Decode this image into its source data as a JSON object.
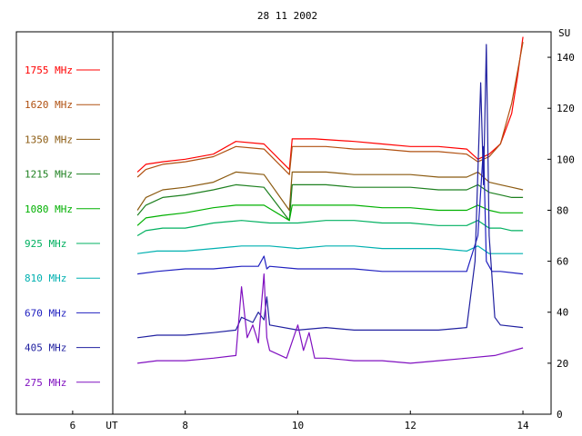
{
  "chart_data": {
    "type": "line",
    "title": "28 11 2002",
    "xlabel": "UT",
    "ylabel": "SU",
    "xlim": [
      5.0,
      14.5
    ],
    "ylim": [
      0,
      150
    ],
    "x_ticks": [
      6,
      8,
      10,
      12,
      14
    ],
    "y_ticks": [
      0,
      20,
      40,
      60,
      80,
      100,
      120,
      140
    ],
    "grid": false,
    "legend_position": "left",
    "series": [
      {
        "name": "1755 MHz",
        "color": "#ff0000",
        "x": [
          7.15,
          7.3,
          7.6,
          8.0,
          8.5,
          8.9,
          9.4,
          9.85,
          9.9,
          10.3,
          11.0,
          11.5,
          12.0,
          12.5,
          13.0,
          13.2,
          13.4,
          13.6,
          13.8,
          13.9,
          14.0
        ],
        "y": [
          95,
          98,
          99,
          100,
          102,
          107,
          106,
          96,
          108,
          108,
          107,
          106,
          105,
          105,
          104,
          100,
          102,
          106,
          118,
          132,
          148
        ]
      },
      {
        "name": "1620 MHz",
        "color": "#b05010",
        "x": [
          7.15,
          7.3,
          7.6,
          8.0,
          8.5,
          8.9,
          9.4,
          9.85,
          9.9,
          10.5,
          11.0,
          11.5,
          12.0,
          12.5,
          13.0,
          13.2,
          13.4,
          13.6,
          13.8,
          13.95,
          14.0
        ],
        "y": [
          93,
          96,
          98,
          99,
          101,
          105,
          104,
          94,
          105,
          105,
          104,
          104,
          103,
          103,
          102,
          99,
          101,
          106,
          122,
          140,
          146
        ]
      },
      {
        "name": "1350 MHz",
        "color": "#8b5a10",
        "x": [
          7.15,
          7.3,
          7.6,
          8.0,
          8.5,
          8.9,
          9.4,
          9.85,
          9.9,
          10.5,
          11.0,
          12.0,
          12.5,
          13.0,
          13.2,
          13.4,
          13.6,
          13.8,
          14.0
        ],
        "y": [
          80,
          85,
          88,
          89,
          91,
          95,
          94,
          80,
          95,
          95,
          94,
          94,
          93,
          93,
          95,
          91,
          90,
          89,
          88
        ]
      },
      {
        "name": "1215 MHz",
        "color": "#1e8020",
        "x": [
          7.15,
          7.3,
          7.6,
          8.0,
          8.5,
          8.9,
          9.4,
          9.85,
          9.9,
          10.5,
          11.0,
          12.0,
          12.5,
          13.0,
          13.2,
          13.4,
          13.6,
          13.8,
          14.0
        ],
        "y": [
          78,
          82,
          85,
          86,
          88,
          90,
          89,
          76,
          90,
          90,
          89,
          89,
          88,
          88,
          90,
          87,
          86,
          85,
          85
        ]
      },
      {
        "name": "1080 MHz",
        "color": "#00b000",
        "x": [
          7.15,
          7.3,
          7.6,
          8.0,
          8.5,
          8.9,
          9.4,
          9.85,
          9.9,
          10.5,
          11.0,
          11.5,
          12.0,
          12.5,
          13.0,
          13.2,
          13.4,
          13.6,
          13.8,
          14.0
        ],
        "y": [
          74,
          77,
          78,
          79,
          81,
          82,
          82,
          76,
          82,
          82,
          82,
          81,
          81,
          80,
          80,
          82,
          80,
          79,
          79,
          79
        ]
      },
      {
        "name": "925 MHz",
        "color": "#00b060",
        "x": [
          7.15,
          7.3,
          7.6,
          8.0,
          8.5,
          9.0,
          9.5,
          10.0,
          10.5,
          11.0,
          11.5,
          12.0,
          12.5,
          13.0,
          13.2,
          13.4,
          13.6,
          13.8,
          14.0
        ],
        "y": [
          70,
          72,
          73,
          73,
          75,
          76,
          75,
          75,
          76,
          76,
          75,
          75,
          74,
          74,
          76,
          73,
          73,
          72,
          72
        ]
      },
      {
        "name": "810 MHz",
        "color": "#00b0b0",
        "x": [
          7.15,
          7.5,
          8.0,
          8.5,
          9.0,
          9.5,
          10.0,
          10.5,
          11.0,
          11.5,
          12.0,
          12.5,
          13.0,
          13.2,
          13.4,
          13.6,
          13.8,
          14.0
        ],
        "y": [
          63,
          64,
          64,
          65,
          66,
          66,
          65,
          66,
          66,
          65,
          65,
          65,
          64,
          66,
          63,
          63,
          63,
          63
        ]
      },
      {
        "name": "670 MHz",
        "color": "#2020c0",
        "x": [
          7.15,
          7.5,
          8.0,
          8.5,
          9.0,
          9.3,
          9.4,
          9.45,
          9.5,
          10.0,
          10.5,
          11.0,
          11.5,
          12.0,
          12.5,
          13.0,
          13.2,
          13.3,
          13.35,
          13.45,
          13.6,
          14.0
        ],
        "y": [
          55,
          56,
          57,
          57,
          58,
          58,
          62,
          57,
          58,
          57,
          57,
          57,
          56,
          56,
          56,
          56,
          70,
          105,
          60,
          56,
          56,
          55
        ]
      },
      {
        "name": "405 MHz",
        "color": "#2020a0",
        "x": [
          7.15,
          7.5,
          8.0,
          8.5,
          8.9,
          9.0,
          9.2,
          9.3,
          9.4,
          9.45,
          9.5,
          10.0,
          10.5,
          11.0,
          11.5,
          12.0,
          12.5,
          13.0,
          13.15,
          13.25,
          13.3,
          13.35,
          13.4,
          13.5,
          13.6,
          14.0
        ],
        "y": [
          30,
          31,
          31,
          32,
          33,
          38,
          36,
          40,
          37,
          46,
          35,
          33,
          34,
          33,
          33,
          33,
          33,
          34,
          60,
          130,
          90,
          145,
          70,
          38,
          35,
          34
        ]
      },
      {
        "name": "275 MHz",
        "color": "#8010c0",
        "x": [
          7.15,
          7.5,
          8.0,
          8.5,
          8.9,
          9.0,
          9.1,
          9.2,
          9.3,
          9.4,
          9.45,
          9.5,
          9.8,
          10.0,
          10.1,
          10.2,
          10.3,
          10.5,
          11.0,
          11.5,
          12.0,
          12.5,
          13.0,
          13.5,
          14.0
        ],
        "y": [
          20,
          21,
          21,
          22,
          23,
          50,
          30,
          35,
          28,
          55,
          30,
          25,
          22,
          35,
          25,
          32,
          22,
          22,
          21,
          21,
          20,
          21,
          22,
          23,
          26
        ]
      }
    ]
  }
}
